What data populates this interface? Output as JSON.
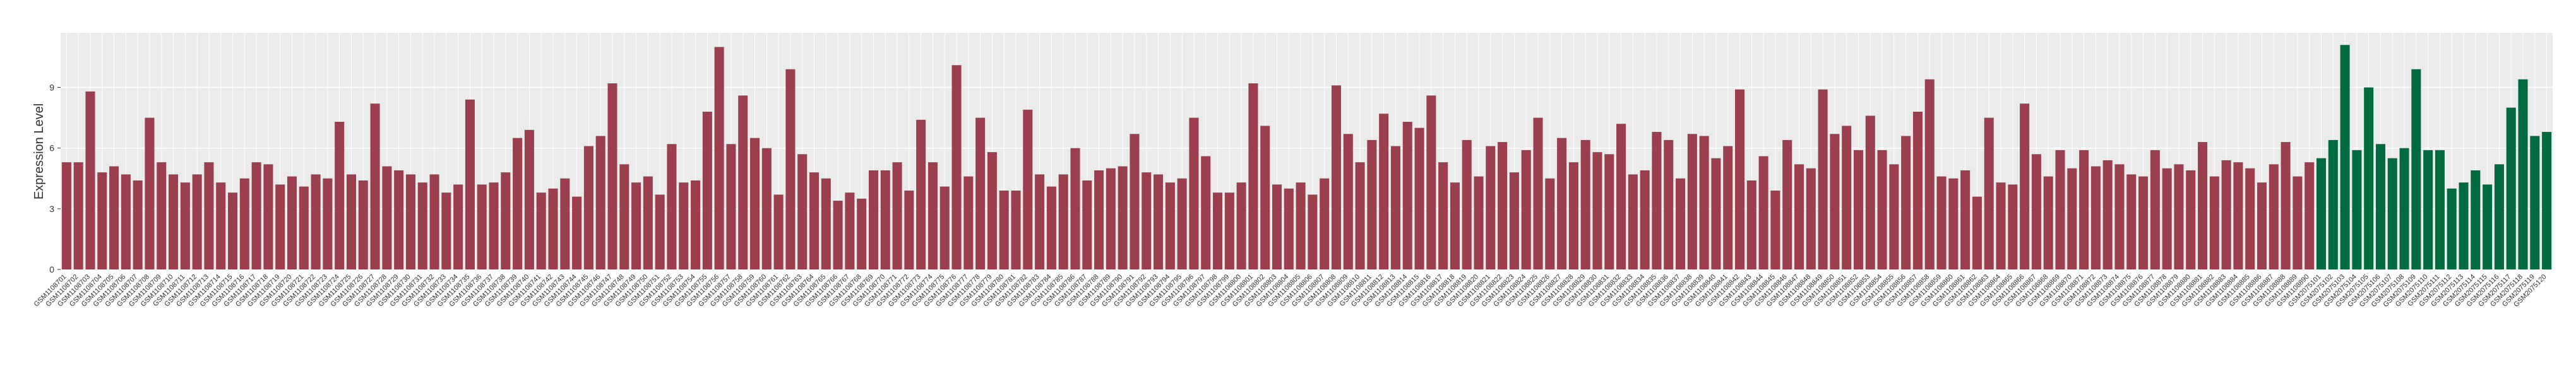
{
  "chart_data": {
    "type": "bar",
    "y_label": "Expression Level",
    "ylim": [
      0,
      11.7
    ],
    "yticks": [
      0,
      3,
      6,
      9
    ],
    "grid": true,
    "groups": [
      {
        "color": "#9b3f4e",
        "categories": [
          "GSM1108701",
          "GSM1108702",
          "GSM1108703",
          "GSM1108704",
          "GSM1108705",
          "GSM1108706",
          "GSM1108707",
          "GSM1108708",
          "GSM1108709",
          "GSM1108710",
          "GSM1108711",
          "GSM1108712",
          "GSM1108713",
          "GSM1108714",
          "GSM1108715",
          "GSM1108716",
          "GSM1108717",
          "GSM1108718",
          "GSM1108719",
          "GSM1108720",
          "GSM1108721",
          "GSM1108722",
          "GSM1108723",
          "GSM1108724",
          "GSM1108725",
          "GSM1108726",
          "GSM1108727",
          "GSM1108728",
          "GSM1108729",
          "GSM1108730",
          "GSM1108731",
          "GSM1108732",
          "GSM1108733",
          "GSM1108734",
          "GSM1108735",
          "GSM1108736",
          "GSM1108737",
          "GSM1108738",
          "GSM1108739",
          "GSM1108740",
          "GSM1108741",
          "GSM1108742",
          "GSM1108743",
          "GSM1108744",
          "GSM1108745",
          "GSM1108746",
          "GSM1108747",
          "GSM1108748",
          "GSM1108749",
          "GSM1108750",
          "GSM1108751",
          "GSM1108752",
          "GSM1108753",
          "GSM1108754",
          "GSM1108755",
          "GSM1108756",
          "GSM1108757",
          "GSM1108758",
          "GSM1108759",
          "GSM1108760",
          "GSM1108761",
          "GSM1108762",
          "GSM1108763",
          "GSM1108764",
          "GSM1108765",
          "GSM1108766",
          "GSM1108767",
          "GSM1108768",
          "GSM1108769",
          "GSM1108770",
          "GSM1108771",
          "GSM1108772",
          "GSM1108773",
          "GSM1108774",
          "GSM1108775",
          "GSM1108776",
          "GSM1108777",
          "GSM1108778",
          "GSM1108779",
          "GSM1108780",
          "GSM1108781",
          "GSM1108782",
          "GSM1108783",
          "GSM1108784",
          "GSM1108785",
          "GSM1108786",
          "GSM1108787",
          "GSM1108788",
          "GSM1108789",
          "GSM1108790",
          "GSM1108791",
          "GSM1108792",
          "GSM1108793",
          "GSM1108794",
          "GSM1108795",
          "GSM1108796",
          "GSM1108797",
          "GSM1108798",
          "GSM1108799",
          "GSM1108800",
          "GSM1108801",
          "GSM1108802",
          "GSM1108803",
          "GSM1108804",
          "GSM1108805",
          "GSM1108806",
          "GSM1108807",
          "GSM1108808",
          "GSM1108809",
          "GSM1108810",
          "GSM1108811",
          "GSM1108812",
          "GSM1108813",
          "GSM1108814",
          "GSM1108815",
          "GSM1108816",
          "GSM1108817",
          "GSM1108818",
          "GSM1108819",
          "GSM1108820",
          "GSM1108821",
          "GSM1108822",
          "GSM1108823",
          "GSM1108824",
          "GSM1108825",
          "GSM1108826",
          "GSM1108827",
          "GSM1108828",
          "GSM1108829",
          "GSM1108830",
          "GSM1108831",
          "GSM1108832",
          "GSM1108833",
          "GSM1108834",
          "GSM1108835",
          "GSM1108836",
          "GSM1108837",
          "GSM1108838",
          "GSM1108839",
          "GSM1108840",
          "GSM1108841",
          "GSM1108842",
          "GSM1108843",
          "GSM1108844",
          "GSM1108845",
          "GSM1108846",
          "GSM1108847",
          "GSM1108848",
          "GSM1108849",
          "GSM1108850",
          "GSM1108851",
          "GSM1108852",
          "GSM1108853",
          "GSM1108854",
          "GSM1108855",
          "GSM1108856",
          "GSM1108857",
          "GSM1108858",
          "GSM1108859",
          "GSM1108860",
          "GSM1108861",
          "GSM1108862",
          "GSM1108863",
          "GSM1108864",
          "GSM1108865",
          "GSM1108866",
          "GSM1108867",
          "GSM1108868",
          "GSM1108869",
          "GSM1108870",
          "GSM1108871",
          "GSM1108872",
          "GSM1108873",
          "GSM1108874",
          "GSM1108875",
          "GSM1108876",
          "GSM1108877",
          "GSM1108878",
          "GSM1108879",
          "GSM1108880",
          "GSM1108881",
          "GSM1108882",
          "GSM1108883",
          "GSM1108884",
          "GSM1108885",
          "GSM1108886",
          "GSM1108887",
          "GSM1108888",
          "GSM1108889",
          "GSM1108890"
        ],
        "values": [
          5.3,
          5.3,
          8.8,
          4.8,
          5.1,
          4.7,
          4.4,
          7.5,
          5.3,
          4.7,
          4.3,
          4.7,
          5.3,
          4.3,
          3.8,
          4.5,
          5.3,
          5.2,
          4.2,
          4.6,
          4.1,
          4.7,
          4.5,
          7.3,
          4.7,
          4.4,
          8.2,
          5.1,
          4.9,
          4.7,
          4.3,
          4.7,
          3.8,
          4.2,
          8.4,
          4.2,
          4.3,
          4.8,
          6.5,
          6.9,
          3.8,
          4.0,
          4.5,
          3.6,
          6.1,
          6.6,
          9.2,
          5.2,
          4.3,
          4.6,
          3.7,
          6.2,
          4.3,
          4.4,
          7.8,
          11.0,
          6.2,
          8.6,
          6.5,
          6.0,
          3.7,
          9.9,
          5.7,
          4.8,
          4.5,
          3.4,
          3.8,
          3.5,
          4.9,
          4.9,
          5.3,
          3.9,
          7.4,
          5.3,
          4.1,
          10.1,
          4.6,
          7.5,
          5.8,
          3.9,
          3.9,
          7.9,
          4.7,
          4.1,
          4.7,
          6.0,
          4.4,
          4.9,
          5.0,
          5.1,
          6.7,
          4.8,
          4.7,
          4.3,
          4.5,
          7.5,
          5.6,
          3.8,
          3.8,
          4.3,
          9.2,
          7.1,
          4.2,
          4.0,
          4.3,
          3.7,
          4.5,
          9.1,
          6.7,
          5.3,
          6.4,
          7.7,
          6.1,
          7.3,
          7.0,
          8.6,
          5.3,
          4.3,
          6.4,
          4.6,
          6.1,
          6.3,
          4.8,
          5.9,
          7.5,
          4.5,
          6.5,
          5.3,
          6.4,
          5.8,
          5.7,
          7.2,
          4.7,
          4.9,
          6.8,
          6.4,
          4.5,
          6.7,
          6.6,
          5.5,
          6.1,
          8.9,
          4.4,
          5.6,
          3.9,
          6.4,
          5.2,
          5.0,
          8.9,
          6.7,
          7.1,
          5.9,
          7.6,
          5.9,
          5.2,
          6.6,
          7.8,
          9.4,
          4.6,
          4.5,
          4.9,
          3.6,
          7.5,
          4.3,
          4.2,
          8.2,
          5.7,
          4.6,
          5.9,
          5.0,
          5.9,
          5.1,
          5.4,
          5.2,
          4.7,
          4.6,
          5.9,
          5.0,
          5.2,
          4.9,
          6.3,
          4.6,
          5.4,
          5.3,
          5.0,
          4.3,
          5.2,
          6.3,
          4.6,
          5.3
        ]
      },
      {
        "color": "#006b3f",
        "categories": [
          "GSM2075101",
          "GSM2075102",
          "GSM2075103",
          "GSM2075104",
          "GSM2075105",
          "GSM2075106",
          "GSM2075107",
          "GSM2075108",
          "GSM2075109",
          "GSM2075110",
          "GSM2075111",
          "GSM2075112",
          "GSM2075113",
          "GSM2075114",
          "GSM2075115",
          "GSM2075116",
          "GSM2075117",
          "GSM2075118",
          "GSM2075119",
          "GSM2075120"
        ],
        "values": [
          5.5,
          6.4,
          11.1,
          5.9,
          9.0,
          6.2,
          5.5,
          6.0,
          9.9,
          5.9,
          5.9,
          4.0,
          4.3,
          4.9,
          4.2,
          5.2,
          8.0,
          9.4,
          6.6,
          6.8
        ]
      }
    ]
  }
}
